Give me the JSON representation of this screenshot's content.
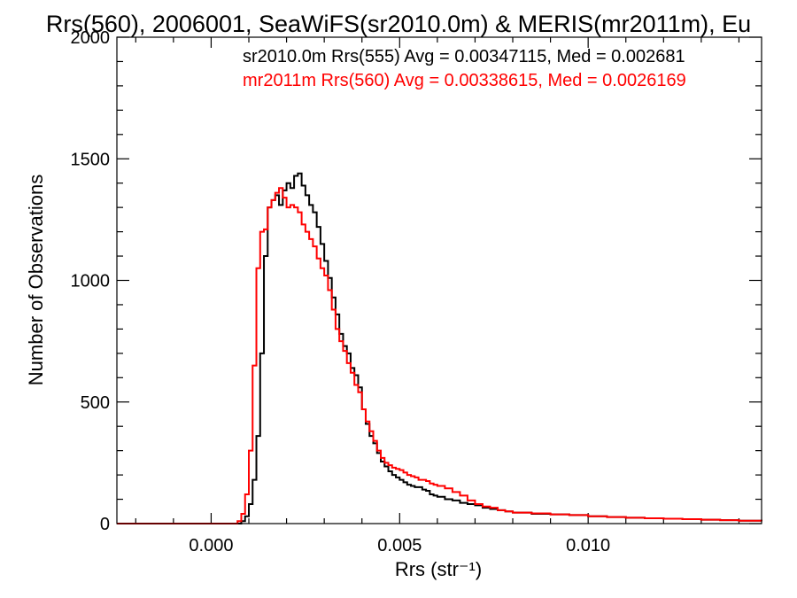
{
  "colors": {
    "series_sr": "#000000",
    "series_mr": "#ff0000",
    "axes": "#000000",
    "background": "#ffffff"
  },
  "chart_data": {
    "type": "line",
    "title": "Rrs(560), 2006001, SeaWiFS(sr2010.0m) & MERIS(mr2011m), Eu",
    "xlabel": "Rrs (str⁻¹)",
    "ylabel": "Number of Observations",
    "xlim": [
      -0.0025,
      0.0146
    ],
    "ylim": [
      0,
      2000
    ],
    "x_ticks": [
      {
        "value": 0.0,
        "label": "0.000"
      },
      {
        "value": 0.005,
        "label": "0.005"
      },
      {
        "value": 0.01,
        "label": "0.010"
      }
    ],
    "y_ticks": [
      {
        "value": 0,
        "label": "0"
      },
      {
        "value": 500,
        "label": "500"
      },
      {
        "value": 1000,
        "label": "1000"
      },
      {
        "value": 1500,
        "label": "1500"
      },
      {
        "value": 2000,
        "label": "2000"
      }
    ],
    "grid": false,
    "legend_placement": "top-right",
    "series": [
      {
        "name": "sr2010.0m Rrs(555) Avg = 0.00347115, Med = 0.002681",
        "color": "#000000",
        "points": [
          [
            -0.0025,
            0
          ],
          [
            0.0,
            0
          ],
          [
            0.0006,
            0
          ],
          [
            0.0008,
            10
          ],
          [
            0.0009,
            30
          ],
          [
            0.001,
            80
          ],
          [
            0.0011,
            180
          ],
          [
            0.0012,
            360
          ],
          [
            0.0013,
            700
          ],
          [
            0.0014,
            1100
          ],
          [
            0.0015,
            1300
          ],
          [
            0.0016,
            1330
          ],
          [
            0.0017,
            1350
          ],
          [
            0.0018,
            1310
          ],
          [
            0.0019,
            1370
          ],
          [
            0.002,
            1400
          ],
          [
            0.0021,
            1380
          ],
          [
            0.0022,
            1430
          ],
          [
            0.0023,
            1440
          ],
          [
            0.0024,
            1390
          ],
          [
            0.0025,
            1350
          ],
          [
            0.0026,
            1310
          ],
          [
            0.0027,
            1280
          ],
          [
            0.0028,
            1220
          ],
          [
            0.0029,
            1150
          ],
          [
            0.003,
            1080
          ],
          [
            0.0031,
            1010
          ],
          [
            0.0032,
            930
          ],
          [
            0.0033,
            860
          ],
          [
            0.0034,
            780
          ],
          [
            0.0035,
            730
          ],
          [
            0.0036,
            700
          ],
          [
            0.0037,
            640
          ],
          [
            0.0038,
            610
          ],
          [
            0.0039,
            560
          ],
          [
            0.004,
            470
          ],
          [
            0.0041,
            410
          ],
          [
            0.0042,
            360
          ],
          [
            0.0043,
            330
          ],
          [
            0.0044,
            290
          ],
          [
            0.0045,
            255
          ],
          [
            0.0046,
            235
          ],
          [
            0.0047,
            215
          ],
          [
            0.0048,
            200
          ],
          [
            0.0049,
            190
          ],
          [
            0.005,
            180
          ],
          [
            0.0051,
            170
          ],
          [
            0.0052,
            160
          ],
          [
            0.0053,
            155
          ],
          [
            0.0054,
            150
          ],
          [
            0.0055,
            150
          ],
          [
            0.0056,
            140
          ],
          [
            0.0057,
            135
          ],
          [
            0.0058,
            120
          ],
          [
            0.0059,
            115
          ],
          [
            0.006,
            110
          ],
          [
            0.0062,
            100
          ],
          [
            0.0064,
            95
          ],
          [
            0.0066,
            85
          ],
          [
            0.0068,
            80
          ],
          [
            0.007,
            75
          ],
          [
            0.0072,
            65
          ],
          [
            0.0074,
            60
          ],
          [
            0.0076,
            55
          ],
          [
            0.0078,
            50
          ],
          [
            0.008,
            45
          ],
          [
            0.0085,
            40
          ],
          [
            0.009,
            38
          ],
          [
            0.0095,
            35
          ],
          [
            0.01,
            30
          ],
          [
            0.0105,
            27
          ],
          [
            0.011,
            24
          ],
          [
            0.0115,
            22
          ],
          [
            0.012,
            20
          ],
          [
            0.0125,
            18
          ],
          [
            0.013,
            16
          ],
          [
            0.0135,
            14
          ],
          [
            0.014,
            12
          ],
          [
            0.0146,
            10
          ]
        ]
      },
      {
        "name": "mr2011m Rrs(560) Avg = 0.00338615, Med = 0.0026169",
        "color": "#ff0000",
        "points": [
          [
            -0.0025,
            0
          ],
          [
            0.0,
            0
          ],
          [
            0.0006,
            0
          ],
          [
            0.0007,
            10
          ],
          [
            0.0008,
            40
          ],
          [
            0.0009,
            120
          ],
          [
            0.001,
            300
          ],
          [
            0.0011,
            650
          ],
          [
            0.0012,
            1050
          ],
          [
            0.0013,
            1200
          ],
          [
            0.0014,
            1210
          ],
          [
            0.0015,
            1300
          ],
          [
            0.0016,
            1330
          ],
          [
            0.0017,
            1360
          ],
          [
            0.0018,
            1380
          ],
          [
            0.0019,
            1340
          ],
          [
            0.002,
            1300
          ],
          [
            0.0021,
            1310
          ],
          [
            0.0022,
            1300
          ],
          [
            0.0023,
            1280
          ],
          [
            0.0024,
            1230
          ],
          [
            0.0025,
            1200
          ],
          [
            0.0026,
            1170
          ],
          [
            0.0027,
            1140
          ],
          [
            0.0028,
            1090
          ],
          [
            0.0029,
            1050
          ],
          [
            0.003,
            1020
          ],
          [
            0.0031,
            960
          ],
          [
            0.0032,
            880
          ],
          [
            0.0033,
            800
          ],
          [
            0.0034,
            750
          ],
          [
            0.0035,
            710
          ],
          [
            0.0036,
            660
          ],
          [
            0.0037,
            620
          ],
          [
            0.0038,
            570
          ],
          [
            0.0039,
            540
          ],
          [
            0.004,
            470
          ],
          [
            0.0041,
            420
          ],
          [
            0.0042,
            380
          ],
          [
            0.0043,
            340
          ],
          [
            0.0044,
            300
          ],
          [
            0.0045,
            270
          ],
          [
            0.0046,
            250
          ],
          [
            0.0047,
            240
          ],
          [
            0.0048,
            230
          ],
          [
            0.0049,
            225
          ],
          [
            0.005,
            220
          ],
          [
            0.0051,
            210
          ],
          [
            0.0052,
            200
          ],
          [
            0.0053,
            195
          ],
          [
            0.0054,
            190
          ],
          [
            0.0055,
            180
          ],
          [
            0.0056,
            180
          ],
          [
            0.0057,
            175
          ],
          [
            0.0058,
            165
          ],
          [
            0.0059,
            160
          ],
          [
            0.006,
            155
          ],
          [
            0.0062,
            145
          ],
          [
            0.0064,
            130
          ],
          [
            0.0066,
            115
          ],
          [
            0.0068,
            95
          ],
          [
            0.007,
            80
          ],
          [
            0.0072,
            70
          ],
          [
            0.0074,
            65
          ],
          [
            0.0076,
            55
          ],
          [
            0.0078,
            50
          ],
          [
            0.008,
            45
          ],
          [
            0.0085,
            42
          ],
          [
            0.009,
            38
          ],
          [
            0.0095,
            35
          ],
          [
            0.01,
            30
          ],
          [
            0.0105,
            27
          ],
          [
            0.011,
            24
          ],
          [
            0.0115,
            22
          ],
          [
            0.012,
            20
          ],
          [
            0.0125,
            18
          ],
          [
            0.013,
            16
          ],
          [
            0.0135,
            14
          ],
          [
            0.014,
            12
          ],
          [
            0.0146,
            10
          ]
        ]
      }
    ]
  }
}
